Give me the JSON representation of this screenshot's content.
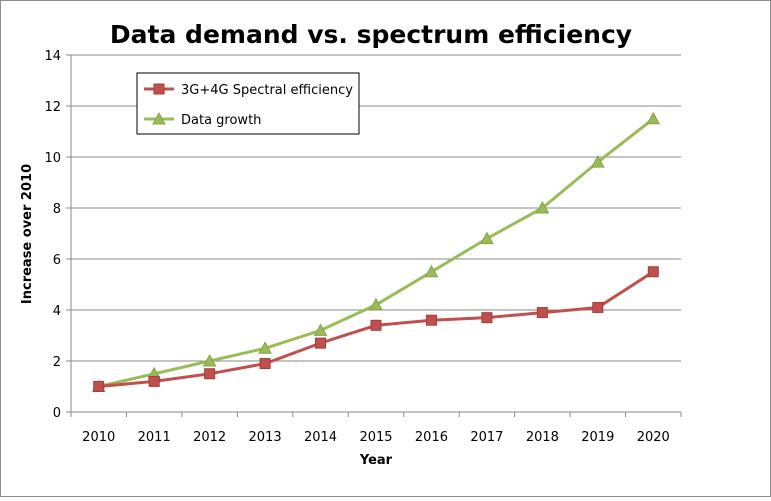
{
  "chart_data": {
    "type": "line",
    "title": "Data demand vs. spectrum efficiency",
    "xlabel": "Year",
    "ylabel": "Increase over 2010",
    "ylim": [
      0,
      14
    ],
    "yticks": [
      "0",
      "2",
      "4",
      "6",
      "8",
      "10",
      "12",
      "14"
    ],
    "categories": [
      "2010",
      "2011",
      "2012",
      "2013",
      "2014",
      "2015",
      "2016",
      "2017",
      "2018",
      "2019",
      "2020"
    ],
    "grid": true,
    "legend_position": "top-left",
    "series": [
      {
        "name": "3G+4G Spectral efficiency",
        "marker": "square",
        "color": "#c0504d",
        "values": [
          1.0,
          1.2,
          1.5,
          1.9,
          2.7,
          3.4,
          3.6,
          3.7,
          3.9,
          4.1,
          5.5
        ]
      },
      {
        "name": "Data growth",
        "marker": "triangle",
        "color": "#9bbb59",
        "values": [
          1.0,
          1.5,
          2.0,
          2.5,
          3.2,
          4.2,
          5.5,
          6.8,
          8.0,
          9.8,
          11.5
        ]
      }
    ]
  }
}
